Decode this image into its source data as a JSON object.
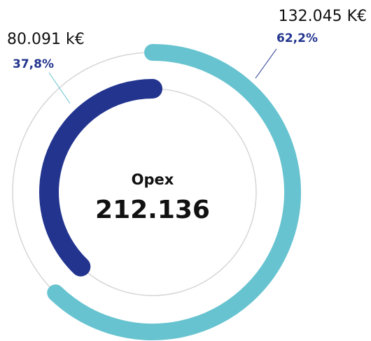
{
  "chart_data": {
    "type": "radial_bar",
    "center_label": "Opex",
    "total": 212136,
    "total_label": "212.136",
    "values": [
      132045,
      80091
    ],
    "value_labels": [
      "132.045 K€",
      "80.091 k€"
    ],
    "percents": [
      62.2,
      37.8
    ],
    "percent_labels": [
      "62,2%",
      "37,8%"
    ],
    "colors": [
      "#67c3d0",
      "#22348e"
    ],
    "track_color": "#d6d6d6"
  }
}
